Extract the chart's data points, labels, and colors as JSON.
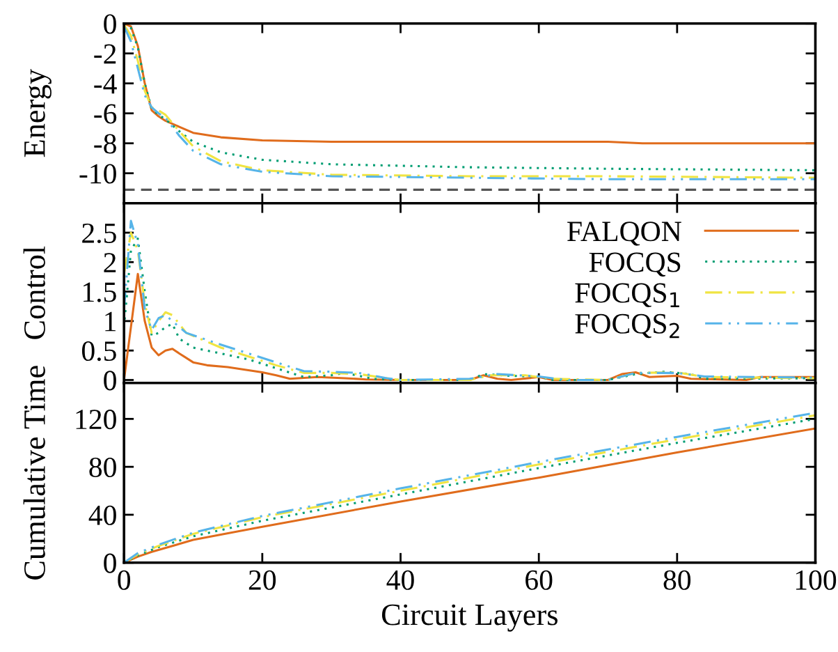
{
  "chart_data": [
    {
      "type": "line",
      "ylabel": "Energy",
      "xlim": [
        0,
        100
      ],
      "xticks": [
        0,
        20,
        40,
        60,
        80,
        100
      ],
      "ylim": [
        -12,
        0
      ],
      "yticks": [
        0,
        -2,
        -4,
        -6,
        -8,
        -10
      ],
      "tick_labels": "y",
      "grid": false,
      "legend": false,
      "ref_lines": [
        {
          "axis": "y",
          "value": -11.1,
          "color": "#555555",
          "line_style": "dashed"
        }
      ],
      "series": [
        {
          "color": "#e06c1c",
          "line_style": "solid",
          "x": [
            0,
            1,
            2,
            3,
            4,
            5,
            6,
            8,
            10,
            14,
            20,
            30,
            50,
            70,
            75,
            100
          ],
          "values": [
            0,
            -0.2,
            -1.5,
            -4,
            -5.8,
            -6.2,
            -6.5,
            -6.9,
            -7.3,
            -7.6,
            -7.8,
            -7.9,
            -7.9,
            -7.9,
            -8.0,
            -8.0
          ]
        },
        {
          "color": "#009e73",
          "line_style": "dotted",
          "x": [
            0,
            1,
            2,
            3,
            4,
            5,
            6,
            8,
            10,
            14,
            20,
            30,
            50,
            70,
            100
          ],
          "values": [
            0,
            -0.3,
            -1.6,
            -4,
            -5.7,
            -6.1,
            -6.4,
            -7.2,
            -7.9,
            -8.6,
            -9.1,
            -9.4,
            -9.6,
            -9.7,
            -9.8
          ]
        },
        {
          "color": "#f0e442",
          "line_style": "dashdot",
          "x": [
            0,
            1,
            2,
            3,
            4,
            5,
            6,
            8,
            10,
            14,
            20,
            30,
            50,
            70,
            100
          ],
          "values": [
            -0.1,
            -0.8,
            -2.5,
            -4.5,
            -5.6,
            -5.8,
            -6.1,
            -7.2,
            -8.2,
            -9.2,
            -9.8,
            -10.1,
            -10.2,
            -10.2,
            -10.3
          ]
        },
        {
          "color": "#56b4e9",
          "line_style": "dashdotdot",
          "x": [
            0,
            1,
            2,
            3,
            4,
            5,
            6,
            8,
            10,
            14,
            20,
            30,
            50,
            70,
            100
          ],
          "values": [
            -0.2,
            -1.2,
            -3,
            -4.8,
            -5.6,
            -6,
            -6.3,
            -7.5,
            -8.5,
            -9.4,
            -9.9,
            -10.2,
            -10.3,
            -10.4,
            -10.4
          ]
        }
      ]
    },
    {
      "type": "line",
      "ylabel": "Control",
      "xlim": [
        0,
        100
      ],
      "xticks": [
        0,
        20,
        40,
        60,
        80,
        100
      ],
      "ylim": [
        -0.05,
        3
      ],
      "yticks": [
        0,
        0.5,
        1,
        1.5,
        2,
        2.5
      ],
      "tick_labels": "y",
      "grid": false,
      "legend": "top right",
      "series": [
        {
          "name": "FALQON",
          "color": "#e06c1c",
          "line_style": "solid",
          "x": [
            0,
            2,
            3,
            4,
            5,
            6,
            7,
            8,
            10,
            12,
            15,
            20,
            22,
            24,
            28,
            32,
            35,
            40,
            50,
            52,
            54,
            56,
            60,
            62,
            70,
            72,
            74,
            76,
            80,
            82,
            90,
            92,
            100
          ],
          "values": [
            0,
            1.8,
            1.0,
            0.55,
            0.42,
            0.5,
            0.53,
            0.45,
            0.3,
            0.25,
            0.22,
            0.13,
            0.08,
            0.02,
            0.05,
            0.03,
            0.01,
            0,
            0,
            0.08,
            0.02,
            0,
            0.05,
            0,
            0,
            0.1,
            0.13,
            0.05,
            0.07,
            0.02,
            0,
            0.05,
            0.05
          ]
        },
        {
          "name": "FOCQS",
          "color": "#009e73",
          "line_style": "dotted",
          "x": [
            0,
            1,
            2,
            3,
            4,
            5,
            6,
            7,
            8,
            10,
            14,
            18,
            22,
            26,
            30,
            32,
            36,
            40,
            50,
            52,
            56,
            60,
            62,
            70,
            74,
            78,
            82,
            84,
            100
          ],
          "values": [
            0.9,
            2.2,
            2.4,
            1.5,
            0.75,
            0.8,
            0.9,
            0.95,
            0.7,
            0.55,
            0.45,
            0.35,
            0.2,
            0.05,
            0.08,
            0.12,
            0.02,
            0,
            0,
            0.1,
            0.07,
            0.06,
            0,
            0,
            0.1,
            0.14,
            0.1,
            0.02,
            0.03
          ]
        },
        {
          "name": "FOCQS$_{1}$",
          "color": "#f0e442",
          "line_style": "dashdot",
          "x": [
            0,
            1,
            2,
            3,
            4,
            5,
            6,
            7,
            9,
            11,
            14,
            18,
            22,
            26,
            30,
            34,
            38,
            40,
            50,
            53,
            58,
            62,
            70,
            74,
            80,
            84,
            100
          ],
          "values": [
            1.8,
            2.5,
            2.2,
            1.3,
            0.8,
            1.0,
            1.15,
            1.1,
            0.8,
            0.7,
            0.55,
            0.4,
            0.25,
            0.12,
            0.12,
            0.1,
            0.03,
            0,
            0,
            0.08,
            0.08,
            0.02,
            0,
            0.12,
            0.13,
            0.05,
            0.03
          ]
        },
        {
          "name": "FOCQS$_{2}$",
          "color": "#56b4e9",
          "line_style": "dashdotdot",
          "x": [
            0,
            1,
            2,
            3,
            4,
            5,
            6,
            7,
            9,
            11,
            14,
            18,
            22,
            26,
            30,
            34,
            38,
            40,
            50,
            54,
            60,
            64,
            70,
            74,
            80,
            84,
            100
          ],
          "values": [
            1.2,
            2.7,
            2.3,
            1.2,
            0.85,
            1.05,
            1.1,
            1.0,
            0.8,
            0.72,
            0.6,
            0.45,
            0.3,
            0.15,
            0.14,
            0.12,
            0.03,
            0,
            0.02,
            0.1,
            0.06,
            0,
            0,
            0.12,
            0.12,
            0.06,
            0.04
          ]
        }
      ]
    },
    {
      "type": "line",
      "xlabel": "Circuit Layers",
      "ylabel": "Cumulative Time",
      "xlim": [
        0,
        100
      ],
      "xticks": [
        0,
        20,
        40,
        60,
        80,
        100
      ],
      "ylim": [
        0,
        150
      ],
      "yticks": [
        0,
        40,
        80,
        120
      ],
      "grid": false,
      "legend": false,
      "series": [
        {
          "color": "#e06c1c",
          "line_style": "solid",
          "x": [
            0,
            2,
            4,
            10,
            20,
            40,
            60,
            80,
            100
          ],
          "values": [
            0,
            5,
            9,
            19,
            30,
            51,
            71,
            92,
            112
          ]
        },
        {
          "color": "#009e73",
          "line_style": "dotted",
          "x": [
            0,
            2,
            5,
            10,
            20,
            40,
            60,
            80,
            100
          ],
          "values": [
            0,
            6,
            13,
            22,
            35,
            57,
            79,
            100,
            120
          ]
        },
        {
          "color": "#f0e442",
          "line_style": "dashdot",
          "x": [
            0,
            2,
            5,
            10,
            20,
            40,
            60,
            80,
            100
          ],
          "values": [
            0,
            7,
            14,
            24,
            38,
            60,
            82,
            103,
            123
          ]
        },
        {
          "color": "#56b4e9",
          "line_style": "dashdotdot",
          "x": [
            0,
            2,
            5,
            10,
            20,
            40,
            60,
            80,
            100
          ],
          "values": [
            0,
            8,
            15,
            25,
            39,
            62,
            84,
            105,
            125
          ]
        }
      ]
    }
  ]
}
